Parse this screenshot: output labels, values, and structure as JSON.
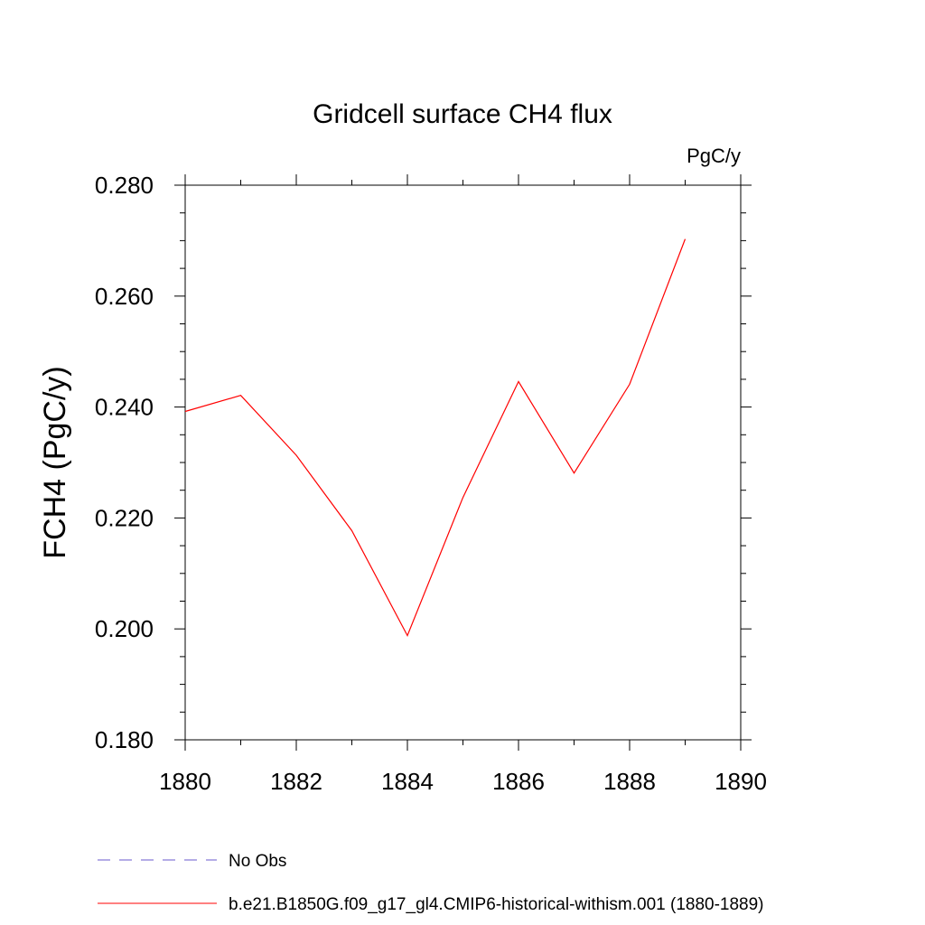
{
  "chart_data": {
    "type": "line",
    "title": "Gridcell surface CH4 flux",
    "units": "PgC/y",
    "ylabel": "FCH4  (PgC/y)",
    "xlabel": "",
    "xlim": [
      1880,
      1890
    ],
    "ylim": [
      0.18,
      0.28
    ],
    "x_ticks": [
      1880,
      1882,
      1884,
      1886,
      1888,
      1890
    ],
    "x_tick_labels": [
      "1880",
      "1882",
      "1884",
      "1886",
      "1888",
      "1890"
    ],
    "y_ticks": [
      0.18,
      0.2,
      0.22,
      0.24,
      0.26,
      0.28
    ],
    "y_tick_labels": [
      "0.180",
      "0.200",
      "0.220",
      "0.240",
      "0.260",
      "0.280"
    ],
    "grid": false,
    "legend_position": "bottom",
    "series": [
      {
        "name": "b.e21.B1850G.f09_g17_gl4.CMIP6-historical-withism.001 (1880-1889)",
        "color": "#ff0000",
        "style": "solid",
        "x": [
          1880,
          1881,
          1882,
          1883,
          1884,
          1885,
          1886,
          1887,
          1888,
          1889
        ],
        "y": [
          0.2392,
          0.2421,
          0.2313,
          0.2177,
          0.1988,
          0.2237,
          0.2446,
          0.2281,
          0.2441,
          0.2703
        ]
      }
    ],
    "legend": [
      {
        "label": "No Obs",
        "color": "#6a5acd",
        "style": "dashed"
      },
      {
        "label": "b.e21.B1850G.f09_g17_gl4.CMIP6-historical-withism.001 (1880-1889)",
        "color": "#ff0000",
        "style": "solid"
      }
    ]
  }
}
